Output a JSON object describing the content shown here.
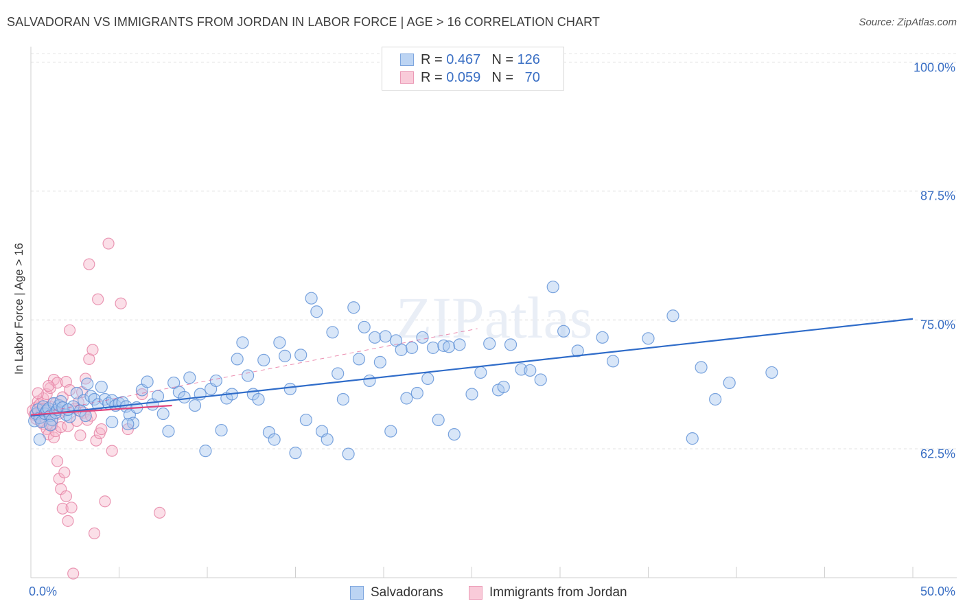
{
  "header": {
    "title": "SALVADORAN VS IMMIGRANTS FROM JORDAN IN LABOR FORCE | AGE > 16 CORRELATION CHART",
    "source": "Source: ZipAtlas.com"
  },
  "legend": {
    "rows": [
      {
        "r_label": "R =",
        "r_value": "0.467",
        "n_label": "N =",
        "n_value": "126",
        "color": "#a9c8ef"
      },
      {
        "r_label": "R =",
        "r_value": "0.059",
        "n_label": "N =",
        "n_value": "70",
        "color": "#f7b7cb"
      }
    ]
  },
  "colors": {
    "blue_fill": "#a9c8ef",
    "blue_stroke": "#5b8fd6",
    "blue_line": "#2f6cc9",
    "pink_fill": "#f7b7cb",
    "pink_stroke": "#e57fa2",
    "pink_line": "#e0457d",
    "axis_text": "#3a6fc4"
  },
  "chart_data": {
    "type": "scatter",
    "title": "SALVADORAN VS IMMIGRANTS FROM JORDAN IN LABOR FORCE | AGE > 16 CORRELATION CHART",
    "xlabel": "",
    "ylabel": "In Labor Force | Age > 16",
    "xlim": [
      0,
      50
    ],
    "ylim": [
      50,
      101.5
    ],
    "x_tick_labels": [
      "0.0%",
      "50.0%"
    ],
    "y_ticks": [
      62.5,
      75.0,
      87.5,
      100.0
    ],
    "y_tick_labels": [
      "62.5%",
      "75.0%",
      "87.5%",
      "100.0%"
    ],
    "grid": "horizontal dashed",
    "legend_position": "bottom-center",
    "watermark": "ZIPatlas",
    "series": [
      {
        "name": "Salvadorans",
        "r": 0.467,
        "n": 126,
        "trend": {
          "x": [
            0,
            50
          ],
          "y": [
            65.7,
            75.1
          ]
        },
        "points": [
          [
            0.2,
            65.2
          ],
          [
            0.3,
            65.9
          ],
          [
            0.4,
            66.3
          ],
          [
            0.5,
            65.5
          ],
          [
            0.6,
            65.1
          ],
          [
            0.7,
            66.6
          ],
          [
            0.8,
            65.9
          ],
          [
            0.9,
            66.2
          ],
          [
            1.0,
            66.4
          ],
          [
            1.1,
            65.7
          ],
          [
            1.2,
            65.3
          ],
          [
            1.3,
            66.9
          ],
          [
            1.4,
            66.0
          ],
          [
            1.5,
            66.3
          ],
          [
            1.6,
            66.7
          ],
          [
            1.7,
            67.1
          ],
          [
            1.8,
            66.5
          ],
          [
            2.0,
            65.8
          ],
          [
            2.2,
            65.6
          ],
          [
            2.4,
            66.6
          ],
          [
            2.6,
            67.9
          ],
          [
            2.8,
            66.2
          ],
          [
            3.0,
            67.2
          ],
          [
            3.2,
            68.8
          ],
          [
            3.4,
            67.6
          ],
          [
            3.6,
            67.3
          ],
          [
            3.8,
            66.8
          ],
          [
            4.0,
            68.5
          ],
          [
            4.2,
            67.3
          ],
          [
            4.4,
            66.9
          ],
          [
            4.6,
            67.2
          ],
          [
            4.8,
            66.7
          ],
          [
            5.0,
            66.9
          ],
          [
            5.2,
            67.0
          ],
          [
            5.4,
            66.6
          ],
          [
            5.6,
            65.8
          ],
          [
            5.8,
            65.0
          ],
          [
            6.0,
            66.5
          ],
          [
            6.3,
            68.2
          ],
          [
            6.6,
            69.0
          ],
          [
            6.9,
            66.8
          ],
          [
            7.2,
            67.6
          ],
          [
            7.5,
            65.9
          ],
          [
            7.8,
            64.2
          ],
          [
            8.1,
            68.9
          ],
          [
            8.4,
            68.0
          ],
          [
            8.7,
            67.5
          ],
          [
            9.0,
            69.4
          ],
          [
            9.3,
            66.7
          ],
          [
            9.6,
            67.8
          ],
          [
            9.9,
            62.3
          ],
          [
            10.2,
            68.3
          ],
          [
            10.5,
            69.1
          ],
          [
            10.8,
            64.3
          ],
          [
            11.1,
            67.4
          ],
          [
            11.4,
            67.8
          ],
          [
            11.7,
            71.2
          ],
          [
            12.0,
            72.8
          ],
          [
            12.3,
            69.6
          ],
          [
            12.6,
            67.8
          ],
          [
            12.9,
            67.3
          ],
          [
            13.2,
            71.1
          ],
          [
            13.5,
            64.1
          ],
          [
            13.8,
            63.4
          ],
          [
            14.1,
            72.8
          ],
          [
            14.4,
            71.5
          ],
          [
            14.7,
            68.3
          ],
          [
            15.0,
            62.1
          ],
          [
            15.3,
            71.6
          ],
          [
            15.6,
            65.3
          ],
          [
            15.9,
            77.1
          ],
          [
            16.2,
            75.8
          ],
          [
            16.5,
            64.2
          ],
          [
            16.8,
            63.4
          ],
          [
            17.1,
            73.8
          ],
          [
            17.4,
            69.8
          ],
          [
            17.7,
            67.3
          ],
          [
            18.0,
            62.0
          ],
          [
            18.3,
            76.2
          ],
          [
            18.6,
            71.2
          ],
          [
            18.9,
            74.3
          ],
          [
            19.2,
            69.1
          ],
          [
            19.5,
            73.3
          ],
          [
            19.8,
            70.9
          ],
          [
            20.1,
            73.4
          ],
          [
            20.4,
            64.2
          ],
          [
            20.7,
            73.0
          ],
          [
            21.0,
            72.1
          ],
          [
            21.3,
            67.4
          ],
          [
            21.6,
            72.3
          ],
          [
            21.9,
            67.9
          ],
          [
            22.2,
            73.3
          ],
          [
            22.5,
            69.3
          ],
          [
            22.8,
            72.3
          ],
          [
            23.1,
            65.3
          ],
          [
            23.4,
            72.5
          ],
          [
            23.7,
            72.4
          ],
          [
            24.0,
            63.9
          ],
          [
            24.3,
            72.6
          ],
          [
            25.0,
            67.8
          ],
          [
            25.5,
            69.9
          ],
          [
            26.0,
            72.7
          ],
          [
            26.5,
            68.2
          ],
          [
            26.8,
            68.5
          ],
          [
            27.2,
            72.6
          ],
          [
            27.8,
            70.2
          ],
          [
            28.3,
            70.1
          ],
          [
            28.9,
            69.2
          ],
          [
            29.6,
            78.2
          ],
          [
            30.2,
            73.9
          ],
          [
            31.0,
            72.0
          ],
          [
            32.4,
            73.3
          ],
          [
            33.0,
            71.0
          ],
          [
            35.0,
            73.2
          ],
          [
            36.4,
            75.4
          ],
          [
            37.5,
            63.5
          ],
          [
            38.0,
            70.4
          ],
          [
            38.8,
            67.3
          ],
          [
            39.6,
            68.9
          ],
          [
            42.0,
            69.9
          ],
          [
            0.5,
            63.4
          ],
          [
            1.1,
            64.8
          ],
          [
            2.1,
            66.3
          ],
          [
            3.1,
            65.7
          ],
          [
            4.6,
            65.1
          ],
          [
            5.5,
            64.9
          ]
        ]
      },
      {
        "name": "Immigrants from Jordan",
        "r": 0.059,
        "n": 70,
        "trend": {
          "x": [
            0,
            8
          ],
          "y": [
            65.8,
            66.7
          ]
        },
        "points": [
          [
            0.1,
            66.2
          ],
          [
            0.2,
            65.8
          ],
          [
            0.3,
            66.5
          ],
          [
            0.3,
            65.4
          ],
          [
            0.4,
            67.1
          ],
          [
            0.4,
            66.0
          ],
          [
            0.5,
            65.7
          ],
          [
            0.5,
            66.8
          ],
          [
            0.6,
            65.2
          ],
          [
            0.6,
            66.3
          ],
          [
            0.7,
            64.9
          ],
          [
            0.7,
            67.4
          ],
          [
            0.8,
            66.1
          ],
          [
            0.8,
            65.5
          ],
          [
            0.9,
            64.4
          ],
          [
            0.9,
            67.8
          ],
          [
            1.0,
            65.9
          ],
          [
            1.0,
            63.9
          ],
          [
            1.1,
            66.6
          ],
          [
            1.1,
            68.4
          ],
          [
            1.2,
            64.8
          ],
          [
            1.2,
            65.3
          ],
          [
            1.3,
            69.2
          ],
          [
            1.3,
            63.6
          ],
          [
            1.4,
            66.9
          ],
          [
            1.4,
            64.2
          ],
          [
            1.5,
            68.9
          ],
          [
            1.5,
            61.3
          ],
          [
            1.6,
            65.9
          ],
          [
            1.6,
            59.6
          ],
          [
            1.7,
            64.6
          ],
          [
            1.7,
            58.6
          ],
          [
            1.8,
            67.5
          ],
          [
            1.8,
            56.7
          ],
          [
            1.9,
            66.2
          ],
          [
            1.9,
            60.2
          ],
          [
            2.0,
            57.9
          ],
          [
            2.0,
            69.0
          ],
          [
            2.1,
            64.7
          ],
          [
            2.1,
            55.5
          ],
          [
            2.2,
            68.2
          ],
          [
            2.2,
            74.0
          ],
          [
            2.3,
            56.8
          ],
          [
            2.4,
            50.4
          ],
          [
            2.5,
            66.4
          ],
          [
            2.6,
            65.2
          ],
          [
            2.7,
            67.0
          ],
          [
            2.8,
            63.8
          ],
          [
            2.9,
            68.0
          ],
          [
            3.0,
            66.0
          ],
          [
            3.1,
            69.3
          ],
          [
            3.2,
            65.3
          ],
          [
            3.3,
            71.2
          ],
          [
            3.3,
            80.4
          ],
          [
            3.4,
            65.7
          ],
          [
            3.5,
            72.1
          ],
          [
            3.6,
            54.3
          ],
          [
            3.7,
            63.3
          ],
          [
            3.8,
            77.0
          ],
          [
            3.9,
            64.0
          ],
          [
            4.0,
            64.4
          ],
          [
            4.2,
            57.4
          ],
          [
            4.4,
            82.4
          ],
          [
            4.6,
            62.3
          ],
          [
            5.1,
            76.6
          ],
          [
            5.5,
            64.4
          ],
          [
            6.3,
            67.8
          ],
          [
            7.3,
            56.3
          ],
          [
            0.4,
            67.9
          ],
          [
            1.0,
            68.6
          ]
        ]
      }
    ]
  },
  "bottom_legend": [
    {
      "label": "Salvadorans"
    },
    {
      "label": "Immigrants from Jordan"
    }
  ],
  "axes": {
    "x_left": "0.0%",
    "x_right": "50.0%"
  }
}
